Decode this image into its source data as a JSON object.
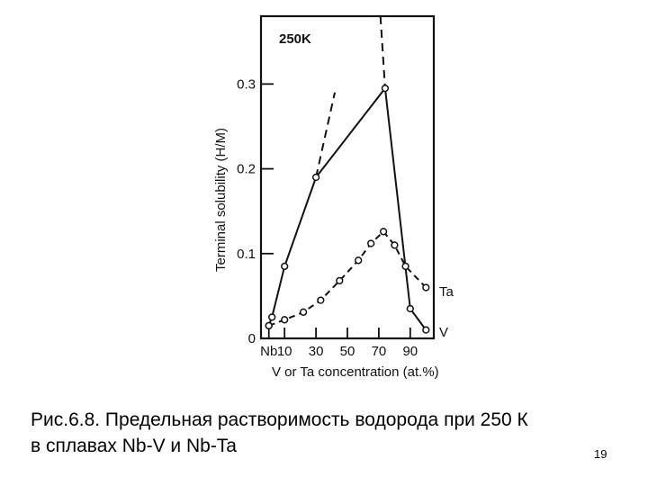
{
  "chart_data": {
    "type": "line",
    "title": "250K",
    "xlabel": "V or Ta concentration (at.%)",
    "ylabel": "Terminal solubility (H/M)",
    "x_tick_labels": [
      "Nb",
      "10",
      "30",
      "50",
      "70",
      "90"
    ],
    "x_tick_values": [
      0,
      10,
      30,
      50,
      70,
      90
    ],
    "y_tick_labels": [
      "0",
      "0.1",
      "0.2",
      "0.3"
    ],
    "y_tick_values": [
      0,
      0.1,
      0.2,
      0.3
    ],
    "xlim": [
      -5,
      105
    ],
    "ylim": [
      0,
      0.38
    ],
    "grid": false,
    "series": [
      {
        "name": "V",
        "points": [
          [
            0,
            0.015
          ],
          [
            2,
            0.025
          ],
          [
            10,
            0.085
          ],
          [
            30,
            0.19
          ],
          [
            74,
            0.295
          ],
          [
            90,
            0.035
          ],
          [
            100,
            0.01
          ]
        ],
        "extrapolated_low": [
          [
            30,
            0.19
          ],
          [
            42,
            0.29
          ]
        ],
        "extrapolated_high": [
          [
            71,
            0.38
          ],
          [
            74,
            0.295
          ]
        ]
      },
      {
        "name": "Ta",
        "points": [
          [
            0,
            0.015
          ],
          [
            10,
            0.022
          ],
          [
            22,
            0.031
          ],
          [
            33,
            0.045
          ],
          [
            45,
            0.068
          ],
          [
            57,
            0.092
          ],
          [
            65,
            0.112
          ],
          [
            73,
            0.126
          ],
          [
            80,
            0.11
          ],
          [
            87,
            0.085
          ],
          [
            100,
            0.06
          ]
        ]
      }
    ]
  },
  "caption": {
    "line1": "Рис.6.8. Предельная растворимость водорода при 250 К",
    "line2": "в сплавах Nb-V и Nb-Ta"
  },
  "page_number": "19"
}
